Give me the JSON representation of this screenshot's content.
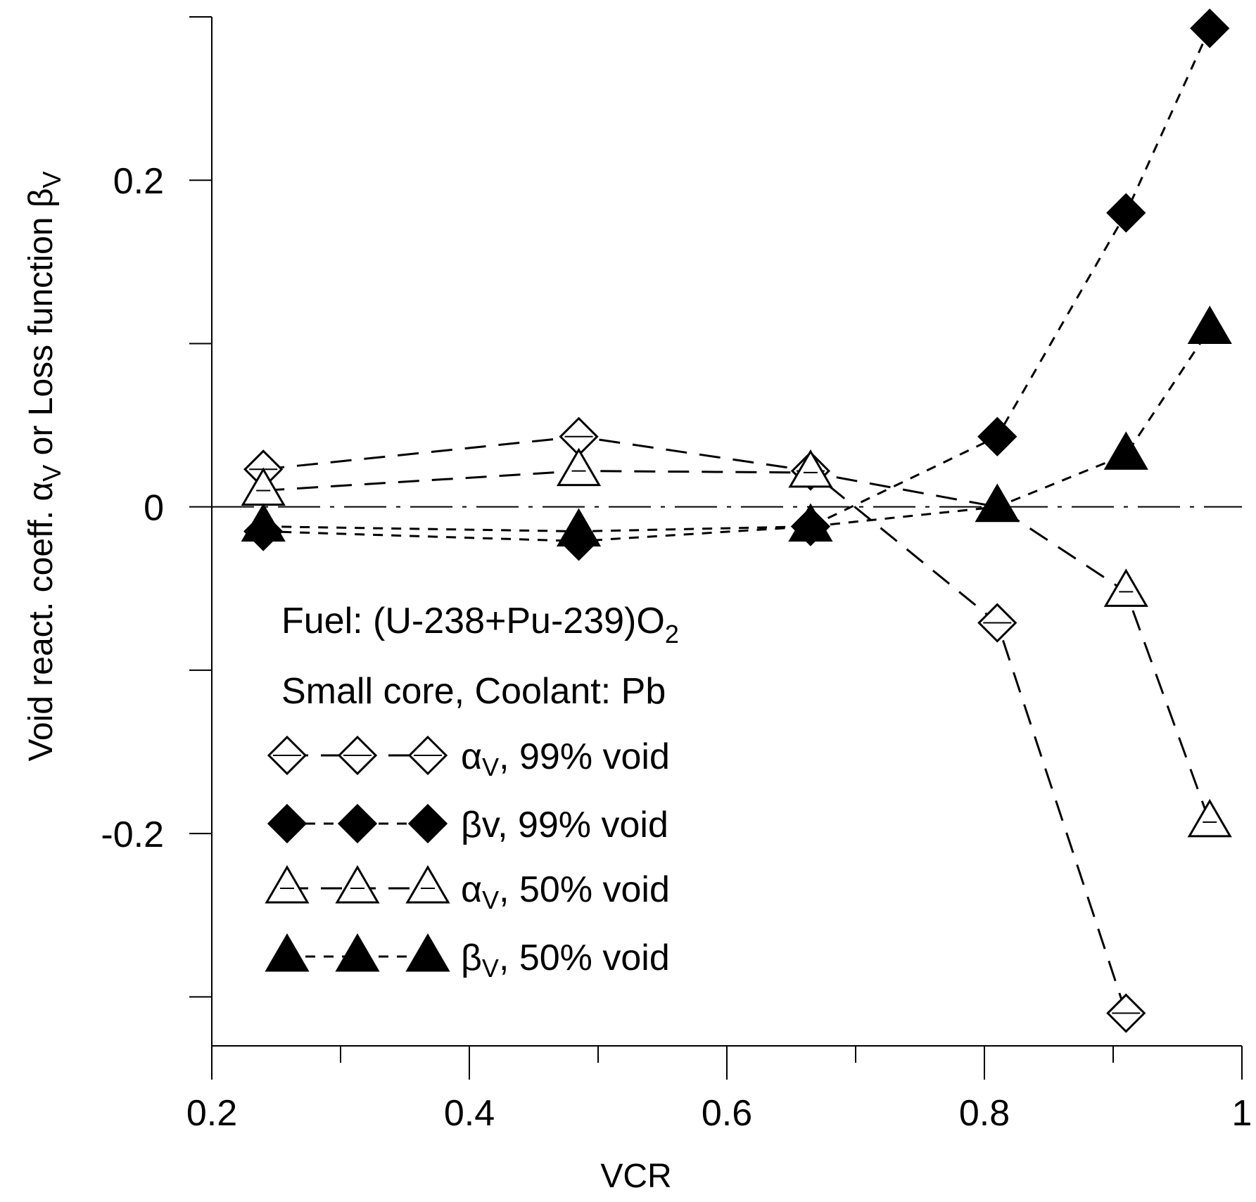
{
  "chart_data": {
    "type": "line",
    "xlabel": "VCR",
    "ylabel": {
      "main": "Void react. coeff. α",
      "sub1": "V",
      "mid": " or Loss function β",
      "sub2": "V"
    },
    "xlim": [
      0.2,
      1.0
    ],
    "ylim": [
      -0.33,
      0.3
    ],
    "x_ticks": [
      0.2,
      0.4,
      0.6,
      0.8,
      1.0
    ],
    "x_tick_labels": [
      "0.2",
      "0.4",
      "0.6",
      "0.8",
      "1"
    ],
    "x_minor_ticks": [
      0.3,
      0.5,
      0.7,
      0.9
    ],
    "y_ticks": [
      -0.2,
      0.0,
      0.2
    ],
    "y_tick_labels": [
      "-0.2",
      "0",
      "0.2"
    ],
    "y_minor_ticks": [
      -0.3,
      -0.1,
      0.1
    ],
    "zero_line": true,
    "annotation": {
      "line1": "Fuel: (U-238+Pu-239)O",
      "line1_sub": "2",
      "line2": "Small core, Coolant: Pb"
    },
    "series": [
      {
        "name": "αV, 99% void",
        "legend_symbol": "α",
        "legend_sub": "V",
        "legend_rest": ", 99% void",
        "marker": "diamond-open",
        "dash": "long",
        "x": [
          0.24,
          0.485,
          0.665,
          0.81,
          0.91
        ],
        "values": [
          0.023,
          0.043,
          0.022,
          -0.071,
          -0.31
        ]
      },
      {
        "name": "βv, 99% void",
        "legend_symbol": "βv",
        "legend_sub": "",
        "legend_rest": ", 99% void",
        "marker": "diamond-filled",
        "dash": "short",
        "x": [
          0.24,
          0.485,
          0.665,
          0.81,
          0.91,
          0.975
        ],
        "values": [
          -0.015,
          -0.021,
          -0.012,
          0.043,
          0.18,
          0.293
        ]
      },
      {
        "name": "αV, 50% void",
        "legend_symbol": "α",
        "legend_sub": "V",
        "legend_rest": ", 50% void",
        "marker": "triangle-open",
        "dash": "long",
        "x": [
          0.24,
          0.485,
          0.665,
          0.81,
          0.91,
          0.975
        ],
        "values": [
          0.01,
          0.022,
          0.021,
          0.0,
          -0.052,
          -0.193
        ]
      },
      {
        "name": "βV, 50% void",
        "legend_symbol": "β",
        "legend_sub": "V",
        "legend_rest": ", 50% void",
        "marker": "triangle-filled",
        "dash": "short",
        "x": [
          0.24,
          0.485,
          0.665,
          0.81,
          0.91,
          0.975
        ],
        "values": [
          -0.012,
          -0.015,
          -0.012,
          0.0,
          0.032,
          0.109
        ]
      }
    ]
  }
}
